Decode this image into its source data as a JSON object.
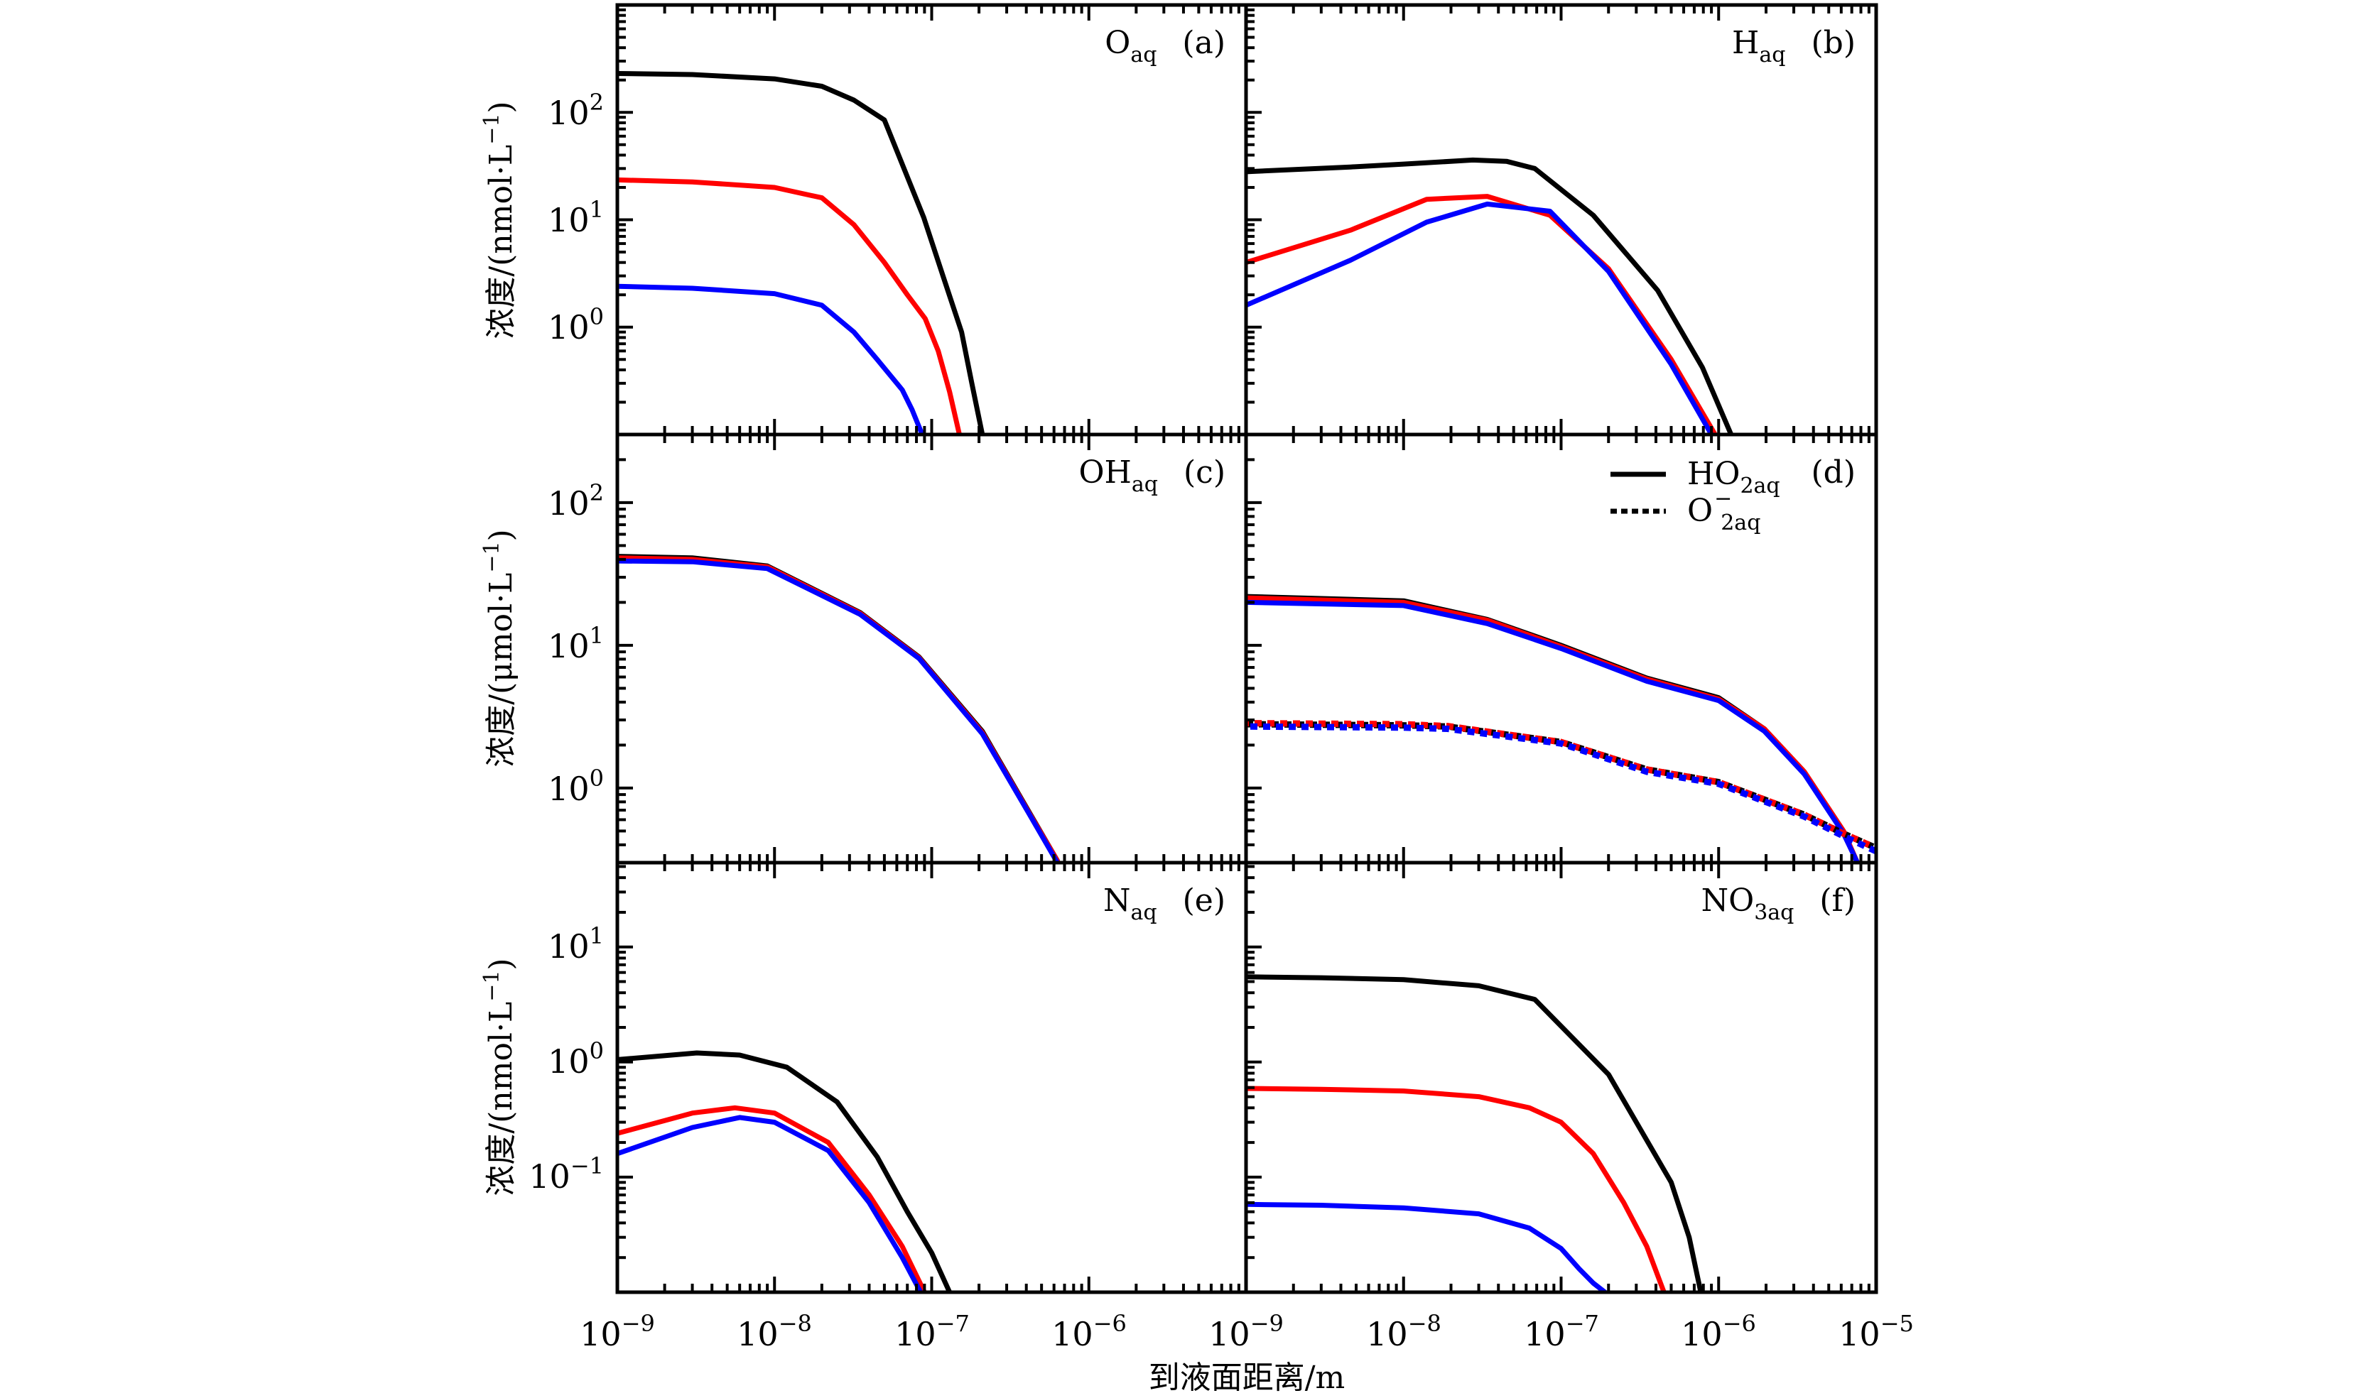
{
  "chart_data": {
    "type": "line",
    "x_scale": "log",
    "y_scale": "log",
    "xlabel": "到液面距离/m",
    "xlim": [
      1e-09,
      1e-05
    ],
    "x_tick_labels": [
      {
        "base": "10",
        "exp": "−9"
      },
      {
        "base": "10",
        "exp": "−8"
      },
      {
        "base": "10",
        "exp": "−7"
      },
      {
        "base": "10",
        "exp": "−6"
      },
      {
        "base": "10",
        "exp": "−9"
      },
      {
        "base": "10",
        "exp": "−8"
      },
      {
        "base": "10",
        "exp": "−7"
      },
      {
        "base": "10",
        "exp": "−6"
      },
      {
        "base": "10",
        "exp": "−5"
      }
    ],
    "series_colors": {
      "black": "#000000",
      "red": "#ff0000",
      "blue": "#0000ff"
    },
    "rows": [
      {
        "ylabel": {
          "main": "浓度/(nmol·L",
          "exp": "−1",
          "close": ")"
        },
        "ylim": [
          0.1,
          1000
        ],
        "y_tick_labels": [
          {
            "value": 100,
            "base": "10",
            "exp": "2"
          },
          {
            "value": 10,
            "base": "10",
            "exp": "1"
          },
          {
            "value": 1,
            "base": "10",
            "exp": "0"
          }
        ]
      },
      {
        "ylabel": {
          "main": "浓度/(μmol·L",
          "exp": "−1",
          "close": ")"
        },
        "ylim": [
          0.3,
          300
        ],
        "y_tick_labels": [
          {
            "value": 100,
            "base": "10",
            "exp": "2"
          },
          {
            "value": 10,
            "base": "10",
            "exp": "1"
          },
          {
            "value": 1,
            "base": "10",
            "exp": "0"
          }
        ]
      },
      {
        "ylabel": {
          "main": "浓度/(nmol·L",
          "exp": "−1",
          "close": ")"
        },
        "ylim": [
          0.01,
          54
        ],
        "y_tick_labels": [
          {
            "value": 10,
            "base": "10",
            "exp": "1"
          },
          {
            "value": 1,
            "base": "10",
            "exp": "0"
          },
          {
            "value": 0.1,
            "base": "10",
            "exp": "−1"
          }
        ]
      }
    ],
    "panels": [
      {
        "id": "a",
        "row": 0,
        "col": 0,
        "species": {
          "main": "O",
          "sub": "aq"
        },
        "tag": "(a)",
        "series": [
          {
            "color": "black",
            "style": "solid",
            "x": [
              1e-09,
              3e-09,
              1e-08,
              2e-08,
              3.2e-08,
              5e-08,
              8.9e-08,
              1.18e-07,
              1.55e-07,
              1.8e-07,
              2.1e-07
            ],
            "y": [
              230,
              225,
              205,
              175,
              130,
              85,
              10.5,
              3,
              0.9,
              0.3,
              0.1
            ]
          },
          {
            "color": "red",
            "style": "solid",
            "x": [
              1e-09,
              3e-09,
              1e-08,
              2e-08,
              3.2e-08,
              5e-08,
              7e-08,
              9.1e-08,
              1.1e-07,
              1.3e-07,
              1.5e-07
            ],
            "y": [
              23.5,
              22.5,
              20,
              16,
              9,
              4,
              2,
              1.2,
              0.6,
              0.25,
              0.1
            ]
          },
          {
            "color": "blue",
            "style": "solid",
            "x": [
              1e-09,
              3e-09,
              1e-08,
              2e-08,
              3.2e-08,
              4.5e-08,
              6.5e-08,
              7.5e-08,
              8.7e-08
            ],
            "y": [
              2.4,
              2.3,
              2.05,
              1.6,
              0.9,
              0.5,
              0.26,
              0.17,
              0.1
            ]
          }
        ]
      },
      {
        "id": "b",
        "row": 0,
        "col": 1,
        "species": {
          "main": "H",
          "sub": "aq"
        },
        "tag": "(b)",
        "series": [
          {
            "color": "black",
            "style": "solid",
            "x": [
              1e-09,
              4.6e-09,
              1e-08,
              2.75e-08,
              4.5e-08,
              6.8e-08,
              1.6e-07,
              4.1e-07,
              7.9e-07,
              1.2e-06
            ],
            "y": [
              28,
              31,
              33,
              36,
              35,
              30,
              11,
              2.2,
              0.42,
              0.1
            ]
          },
          {
            "color": "red",
            "style": "solid",
            "x": [
              1e-09,
              4.6e-09,
              1.4e-08,
              3.4e-08,
              8.5e-08,
              2e-07,
              5e-07,
              9.5e-07
            ],
            "y": [
              4.0,
              8,
              15.5,
              16.5,
              11,
              3.5,
              0.5,
              0.1
            ]
          },
          {
            "color": "blue",
            "style": "solid",
            "x": [
              1e-09,
              4.6e-09,
              1.4e-08,
              3.4e-08,
              8.5e-08,
              2e-07,
              5e-07,
              9e-07
            ],
            "y": [
              1.6,
              4.2,
              9.5,
              14,
              12,
              3.3,
              0.45,
              0.1
            ]
          }
        ]
      },
      {
        "id": "c",
        "row": 1,
        "col": 0,
        "species": {
          "main": "OH",
          "sub": "aq"
        },
        "tag": "(c)",
        "series": [
          {
            "color": "black",
            "style": "solid",
            "x": [
              1e-09,
              3e-09,
              9e-09,
              3.5e-08,
              8.3e-08,
              2.1e-07,
              4.1e-07,
              6.3e-07
            ],
            "y": [
              42,
              41,
              36,
              17,
              8.3,
              2.5,
              0.7,
              0.31
            ]
          },
          {
            "color": "red",
            "style": "solid",
            "x": [
              1e-09,
              3e-09,
              9e-09,
              3.5e-08,
              8.3e-08,
              2.1e-07,
              4.1e-07,
              6.3e-07
            ],
            "y": [
              41,
              40,
              35.5,
              16.8,
              8.2,
              2.45,
              0.69,
              0.31
            ]
          },
          {
            "color": "blue",
            "style": "solid",
            "x": [
              1e-09,
              3e-09,
              9e-09,
              3.5e-08,
              8.3e-08,
              2.1e-07,
              4.1e-07,
              6.3e-07
            ],
            "y": [
              39,
              38.5,
              34.5,
              16.5,
              8.1,
              2.4,
              0.68,
              0.3
            ]
          }
        ]
      },
      {
        "id": "d",
        "row": 1,
        "col": 1,
        "species": null,
        "tag": "(d)",
        "legend": [
          {
            "style": "solid",
            "main": "HO",
            "sub": "2aq",
            "sup": ""
          },
          {
            "style": "dotted",
            "main": "O",
            "sub": "2aq",
            "sup": "−"
          }
        ],
        "series": [
          {
            "color": "black",
            "style": "solid",
            "x": [
              1e-09,
              1e-08,
              3.4e-08,
              1e-07,
              3.5e-07,
              1e-06,
              1.95e-06,
              3.5e-06,
              6.2e-06,
              7.6e-06
            ],
            "y": [
              22,
              20.5,
              15.2,
              10,
              5.9,
              4.3,
              2.6,
              1.3,
              0.5,
              0.3
            ]
          },
          {
            "color": "red",
            "style": "solid",
            "x": [
              1e-09,
              1e-08,
              3.4e-08,
              1e-07,
              3.5e-07,
              1e-06,
              1.95e-06,
              3.5e-06,
              6.2e-06,
              7.6e-06
            ],
            "y": [
              21.5,
              20,
              15,
              9.8,
              5.8,
              4.2,
              2.6,
              1.3,
              0.5,
              0.3
            ]
          },
          {
            "color": "blue",
            "style": "solid",
            "x": [
              1e-09,
              1e-08,
              3.4e-08,
              1e-07,
              3.5e-07,
              1e-06,
              1.95e-06,
              3.5e-06,
              6.2e-06,
              7.6e-06
            ],
            "y": [
              20,
              19,
              14.2,
              9.5,
              5.6,
              4.1,
              2.5,
              1.25,
              0.48,
              0.3
            ]
          },
          {
            "color": "black",
            "style": "dotted",
            "x": [
              1e-09,
              1e-08,
              1.9e-08,
              1e-07,
              3.5e-07,
              1e-06,
              3.5e-06,
              6.2e-06,
              1e-05
            ],
            "y": [
              2.8,
              2.75,
              2.7,
              2.1,
              1.35,
              1.1,
              0.65,
              0.48,
              0.38
            ]
          },
          {
            "color": "red",
            "style": "dotted",
            "x": [
              1e-09,
              1e-08,
              1.9e-08,
              1e-07,
              3.5e-07,
              1e-06,
              3.5e-06,
              6.2e-06,
              1e-05
            ],
            "y": [
              2.85,
              2.8,
              2.72,
              2.1,
              1.35,
              1.1,
              0.65,
              0.48,
              0.38
            ]
          },
          {
            "color": "blue",
            "style": "dotted",
            "x": [
              1e-09,
              1e-08,
              1.9e-08,
              1e-07,
              3.5e-07,
              1e-06,
              3.5e-06,
              6.2e-06,
              1e-05
            ],
            "y": [
              2.7,
              2.65,
              2.6,
              2.05,
              1.3,
              1.07,
              0.63,
              0.46,
              0.36
            ]
          }
        ]
      },
      {
        "id": "e",
        "row": 2,
        "col": 0,
        "species": {
          "main": "N",
          "sub": "aq"
        },
        "tag": "(e)",
        "series": [
          {
            "color": "black",
            "style": "solid",
            "x": [
              1e-09,
              3.2e-09,
              6e-09,
              1.2e-08,
              2.5e-08,
              4.5e-08,
              7e-08,
              1e-07,
              1.3e-07
            ],
            "y": [
              1.05,
              1.2,
              1.15,
              0.9,
              0.45,
              0.15,
              0.05,
              0.022,
              0.01
            ]
          },
          {
            "color": "red",
            "style": "solid",
            "x": [
              1e-09,
              3e-09,
              5.6e-09,
              1e-08,
              2.2e-08,
              4e-08,
              6.5e-08,
              9e-08
            ],
            "y": [
              0.24,
              0.36,
              0.4,
              0.36,
              0.2,
              0.07,
              0.025,
              0.01
            ]
          },
          {
            "color": "blue",
            "style": "solid",
            "x": [
              1e-09,
              3e-09,
              6e-09,
              1e-08,
              2.2e-08,
              4e-08,
              6.5e-08,
              8.5e-08
            ],
            "y": [
              0.16,
              0.27,
              0.33,
              0.3,
              0.17,
              0.06,
              0.02,
              0.01
            ]
          }
        ]
      },
      {
        "id": "f",
        "row": 2,
        "col": 1,
        "species": {
          "main": "NO",
          "sub": "3aq"
        },
        "tag": "(f)",
        "series": [
          {
            "color": "black",
            "style": "solid",
            "x": [
              1e-09,
              3e-09,
              1e-08,
              3e-08,
              6.8e-08,
              2e-07,
              5e-07,
              6.5e-07,
              7.7e-07
            ],
            "y": [
              5.5,
              5.4,
              5.2,
              4.6,
              3.5,
              0.78,
              0.09,
              0.03,
              0.01
            ]
          },
          {
            "color": "red",
            "style": "solid",
            "x": [
              1e-09,
              3e-09,
              1e-08,
              3e-08,
              6.3e-08,
              1e-07,
              1.6e-07,
              2.5e-07,
              3.5e-07,
              4.5e-07
            ],
            "y": [
              0.59,
              0.58,
              0.56,
              0.5,
              0.4,
              0.3,
              0.16,
              0.06,
              0.025,
              0.01
            ]
          },
          {
            "color": "blue",
            "style": "solid",
            "x": [
              1e-09,
              3e-09,
              1e-08,
              3e-08,
              6.3e-08,
              1e-07,
              1.3e-07,
              1.6e-07,
              1.9e-07
            ],
            "y": [
              0.058,
              0.057,
              0.054,
              0.048,
              0.036,
              0.024,
              0.016,
              0.012,
              0.01
            ]
          }
        ]
      }
    ]
  }
}
